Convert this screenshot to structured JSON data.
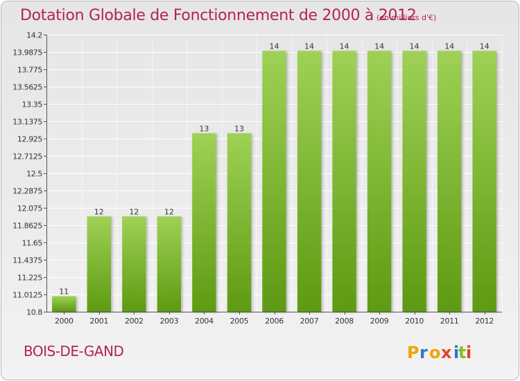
{
  "header": {
    "title": "Dotation Globale de Fonctionnement de 2000 à 2012",
    "unit_note": "(en milliers d'€)"
  },
  "footer": {
    "commune": "BOIS-DE-GAND",
    "brand": "Proxiti"
  },
  "colors": {
    "title": "#b4205a",
    "bar_light": "#9ed155",
    "bar_dark": "#5e9a12",
    "brand_letters": [
      "#f0a500",
      "#2a78c8",
      "#f0a500",
      "#e8402a",
      "#2a78c8",
      "#7fbf2a",
      "#e8402a"
    ]
  },
  "chart_data": {
    "type": "bar",
    "title": "Dotation Globale de Fonctionnement de 2000 à 2012",
    "subtitle": "(en milliers d'€)",
    "xlabel": "",
    "ylabel": "",
    "categories": [
      "2000",
      "2001",
      "2002",
      "2003",
      "2004",
      "2005",
      "2006",
      "2007",
      "2008",
      "2009",
      "2010",
      "2011",
      "2012"
    ],
    "values": [
      11,
      12,
      12,
      12,
      13,
      13,
      14,
      14,
      14,
      14,
      14,
      14,
      14
    ],
    "data_labels": [
      "11",
      "12",
      "12",
      "12",
      "13",
      "13",
      "14",
      "14",
      "14",
      "14",
      "14",
      "14",
      "14"
    ],
    "bar_values_estimated": [
      10.99,
      11.97,
      11.97,
      11.97,
      12.99,
      12.99,
      14.0,
      14.0,
      14.0,
      14.0,
      14.0,
      14.0,
      14.0
    ],
    "ylim": [
      10.8,
      14.2
    ],
    "y_ticks": [
      10.8,
      11.0125,
      11.225,
      11.4375,
      11.65,
      11.8625,
      12.075,
      12.2875,
      12.5,
      12.7125,
      12.925,
      13.1375,
      13.35,
      13.5625,
      13.775,
      13.9875,
      14.2
    ],
    "y_tick_labels": [
      "10.8",
      "11.0125",
      "11.225",
      "11.4375",
      "11.65",
      "11.8625",
      "12.075",
      "12.2875",
      "12.5",
      "12.7125",
      "12.925",
      "13.1375",
      "13.35",
      "13.5625",
      "13.775",
      "13.9875",
      "14.2"
    ],
    "grid": true,
    "legend": "none"
  }
}
